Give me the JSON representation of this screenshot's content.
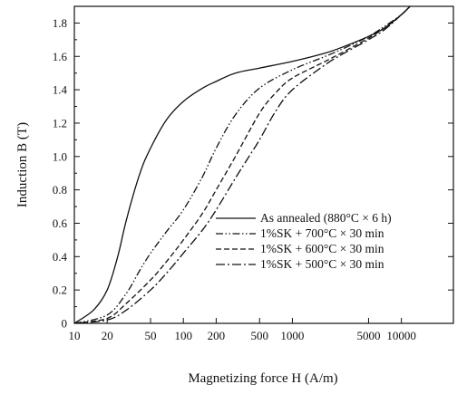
{
  "chart_data": {
    "type": "line",
    "title": "",
    "xlabel": "Magnetizing force H (A/m)",
    "ylabel": "Induction B (T)",
    "xscale": "log",
    "xlim": [
      10,
      30000
    ],
    "ylim": [
      0,
      1.9
    ],
    "grid": false,
    "legend_position": "lower-right",
    "x_ticks": [
      10,
      20,
      50,
      100,
      200,
      500,
      1000,
      5000,
      10000
    ],
    "x_tick_labels": [
      "10",
      "20",
      "50",
      "100",
      "200",
      "500",
      "1000",
      "5000",
      "10000"
    ],
    "y_ticks": [
      0,
      0.2,
      0.4,
      0.6,
      0.8,
      1.0,
      1.2,
      1.4,
      1.6,
      1.8
    ],
    "y_tick_labels": [
      "0",
      "0.2",
      "0.4",
      "0.6",
      "0.8",
      "1.0",
      "1.2",
      "1.4",
      "1.6",
      "1.8"
    ],
    "series": [
      {
        "name": "As annealed (880°C × 6 h)",
        "dash": "solid",
        "x": [
          10,
          15,
          20,
          25,
          30,
          40,
          50,
          70,
          100,
          150,
          200,
          300,
          500,
          1000,
          2000,
          3000,
          5000,
          7000,
          10000,
          12000
        ],
        "y": [
          0,
          0.08,
          0.2,
          0.4,
          0.62,
          0.9,
          1.05,
          1.22,
          1.33,
          1.41,
          1.45,
          1.5,
          1.53,
          1.57,
          1.62,
          1.66,
          1.72,
          1.77,
          1.85,
          1.9
        ]
      },
      {
        "name": "1%SK + 700°C × 30 min",
        "dash": "dash-dot-dot",
        "x": [
          10,
          20,
          30,
          40,
          50,
          70,
          100,
          150,
          200,
          300,
          500,
          1000,
          2000,
          3000,
          5000,
          7000,
          10000,
          12000
        ],
        "y": [
          0,
          0.05,
          0.18,
          0.32,
          0.42,
          0.55,
          0.68,
          0.88,
          1.05,
          1.25,
          1.41,
          1.52,
          1.6,
          1.65,
          1.72,
          1.78,
          1.85,
          1.9
        ]
      },
      {
        "name": "1%SK + 600°C × 30 min",
        "dash": "dashed",
        "x": [
          10,
          20,
          30,
          50,
          70,
          100,
          150,
          200,
          300,
          500,
          700,
          1000,
          2000,
          3000,
          5000,
          7000,
          10000,
          12000
        ],
        "y": [
          0,
          0.03,
          0.12,
          0.26,
          0.37,
          0.5,
          0.66,
          0.8,
          1.0,
          1.26,
          1.38,
          1.47,
          1.57,
          1.63,
          1.71,
          1.77,
          1.85,
          1.9
        ]
      },
      {
        "name": "1%SK + 500°C × 30 min",
        "dash": "dash-dot",
        "x": [
          10,
          20,
          30,
          50,
          70,
          100,
          150,
          200,
          300,
          400,
          500,
          700,
          1000,
          2000,
          3000,
          5000,
          7000,
          10000,
          12000
        ],
        "y": [
          0,
          0.02,
          0.08,
          0.2,
          0.3,
          0.42,
          0.56,
          0.68,
          0.87,
          1.0,
          1.1,
          1.27,
          1.4,
          1.55,
          1.62,
          1.7,
          1.76,
          1.85,
          1.9
        ]
      }
    ]
  }
}
